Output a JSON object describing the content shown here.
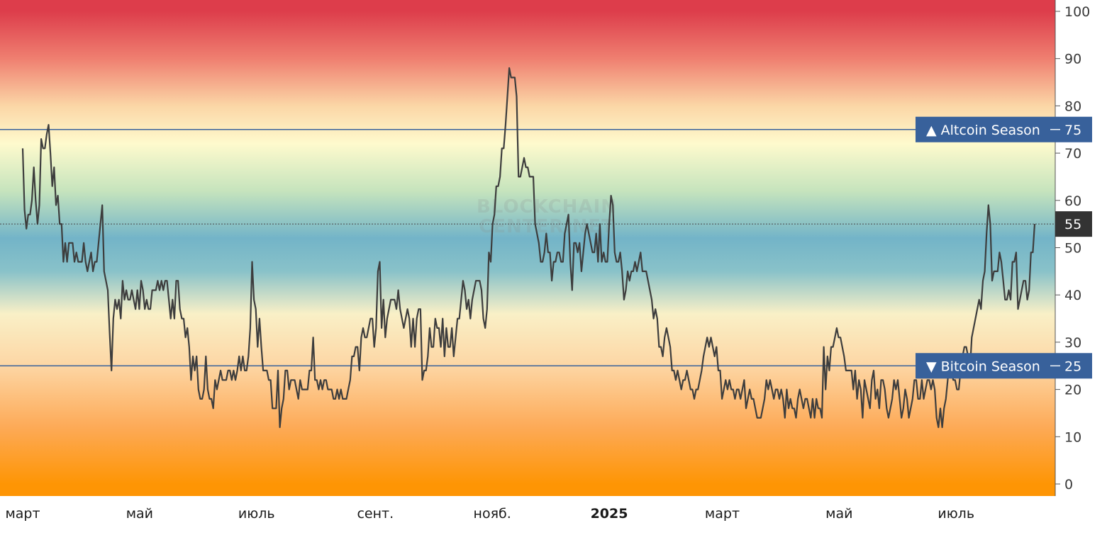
{
  "chart_data": {
    "type": "line",
    "title": "",
    "xlabel": "",
    "ylabel": "",
    "ylim": [
      0,
      100
    ],
    "y_ticks": [
      0,
      10,
      20,
      30,
      40,
      50,
      60,
      70,
      80,
      90,
      100
    ],
    "x_tick_labels": [
      "март",
      "май",
      "июль",
      "сент.",
      "нояб.",
      "2025",
      "март",
      "май",
      "июль"
    ],
    "x_domain_days": [
      0,
      528
    ],
    "x_tick_days": [
      0,
      61,
      122,
      184,
      245,
      306,
      365,
      426,
      487
    ],
    "bold_tick": "2025",
    "current_value": 55,
    "current_value_label": "55",
    "watermark": "BLOCKCHAIN CENTER.NET",
    "reference_lines": [
      {
        "value": 75,
        "label": "▲ Altcoin Season",
        "value_label": "75"
      },
      {
        "value": 25,
        "label": "▼ Bitcoin Season",
        "value_label": "25"
      }
    ],
    "grid": false,
    "legend": "none",
    "background_gradient": [
      {
        "value": 100,
        "color": "#dd3d4b"
      },
      {
        "value": 90,
        "color": "#ef7f70"
      },
      {
        "value": 80,
        "color": "#fbd6a6"
      },
      {
        "value": 72,
        "color": "#fefacd"
      },
      {
        "value": 62,
        "color": "#c6e4bd"
      },
      {
        "value": 52,
        "color": "#73b4c8"
      },
      {
        "value": 45,
        "color": "#89c2c9"
      },
      {
        "value": 36,
        "color": "#f9f0c7"
      },
      {
        "value": 25,
        "color": "#fdd6a4"
      },
      {
        "value": 12,
        "color": "#fdaa57"
      },
      {
        "value": 0,
        "color": "#fe9504"
      }
    ],
    "colors": {
      "line": "#3d3d3d",
      "reference": "#38619b",
      "label_bg": "#38619b",
      "current_bg": "#333333"
    },
    "series": [
      {
        "values": [
          71,
          58,
          54,
          57,
          57,
          60,
          67,
          60,
          55,
          59,
          73,
          71,
          71,
          74,
          76,
          70,
          63,
          67,
          59,
          61,
          55,
          55,
          47,
          51,
          47,
          51,
          51,
          51,
          47,
          49,
          47,
          47,
          47,
          51,
          47,
          45,
          47,
          49,
          45,
          47,
          47,
          51,
          55,
          59,
          45,
          43,
          41,
          32,
          24,
          35,
          39,
          37,
          39,
          35,
          43,
          39,
          41,
          39,
          39,
          41,
          39,
          37,
          41,
          37,
          43,
          41,
          37,
          39,
          37,
          37,
          41,
          41,
          41,
          43,
          41,
          43,
          41,
          43,
          43,
          39,
          35,
          39,
          35,
          43,
          43,
          37,
          35,
          35,
          31,
          33,
          29,
          22,
          27,
          24,
          27,
          20,
          18,
          18,
          20,
          27,
          20,
          18,
          18,
          16,
          22,
          20,
          22,
          24,
          22,
          22,
          22,
          24,
          24,
          22,
          24,
          22,
          24,
          27,
          24,
          27,
          24,
          24,
          27,
          33,
          47,
          39,
          37,
          29,
          35,
          29,
          24,
          24,
          24,
          22,
          22,
          16,
          16,
          16,
          24,
          12,
          16,
          18,
          24,
          24,
          20,
          22,
          22,
          22,
          20,
          18,
          22,
          20,
          20,
          20,
          20,
          24,
          24,
          31,
          22,
          22,
          20,
          22,
          20,
          22,
          22,
          20,
          20,
          20,
          18,
          18,
          20,
          18,
          20,
          18,
          18,
          18,
          20,
          22,
          27,
          27,
          29,
          29,
          24,
          31,
          33,
          31,
          31,
          33,
          35,
          35,
          29,
          33,
          45,
          47,
          33,
          39,
          31,
          35,
          37,
          39,
          39,
          39,
          37,
          41,
          37,
          35,
          33,
          35,
          37,
          35,
          29,
          35,
          29,
          35,
          37,
          37,
          22,
          24,
          24,
          27,
          33,
          29,
          29,
          35,
          33,
          33,
          29,
          35,
          27,
          33,
          29,
          29,
          33,
          27,
          31,
          35,
          35,
          39,
          43,
          41,
          37,
          39,
          35,
          39,
          41,
          43,
          43,
          43,
          41,
          35,
          33,
          37,
          49,
          47,
          55,
          57,
          63,
          63,
          65,
          71,
          71,
          76,
          82,
          88,
          86,
          86,
          86,
          82,
          65,
          65,
          67,
          69,
          67,
          67,
          65,
          65,
          65,
          55,
          53,
          51,
          47,
          47,
          49,
          53,
          49,
          49,
          43,
          47,
          47,
          49,
          49,
          47,
          47,
          53,
          55,
          57,
          47,
          41,
          51,
          51,
          49,
          51,
          45,
          49,
          53,
          55,
          53,
          51,
          49,
          49,
          53,
          47,
          55,
          47,
          49,
          47,
          47,
          55,
          61,
          59,
          49,
          47,
          47,
          49,
          45,
          39,
          41,
          45,
          43,
          45,
          45,
          47,
          45,
          47,
          49,
          45,
          45,
          45,
          43,
          41,
          39,
          35,
          37,
          35,
          29,
          29,
          27,
          31,
          33,
          31,
          29,
          24,
          24,
          22,
          24,
          22,
          20,
          22,
          22,
          24,
          22,
          20,
          20,
          18,
          20,
          20,
          22,
          24,
          27,
          29,
          31,
          29,
          31,
          29,
          27,
          29,
          24,
          24,
          18,
          20,
          22,
          20,
          22,
          20,
          20,
          18,
          20,
          20,
          18,
          20,
          22,
          16,
          18,
          20,
          18,
          18,
          16,
          14,
          14,
          14,
          16,
          18,
          22,
          20,
          22,
          20,
          18,
          20,
          20,
          18,
          20,
          18,
          14,
          20,
          16,
          18,
          16,
          16,
          14,
          18,
          20,
          18,
          16,
          18,
          18,
          16,
          14,
          18,
          14,
          18,
          16,
          16,
          14,
          29,
          20,
          27,
          24,
          29,
          29,
          31,
          33,
          31,
          31,
          29,
          27,
          24,
          24,
          24,
          24,
          20,
          24,
          18,
          22,
          20,
          14,
          22,
          20,
          18,
          16,
          22,
          24,
          18,
          20,
          16,
          22,
          22,
          20,
          16,
          14,
          16,
          18,
          22,
          20,
          22,
          18,
          14,
          16,
          20,
          18,
          14,
          16,
          18,
          22,
          22,
          18,
          18,
          22,
          18,
          20,
          22,
          22,
          20,
          22,
          20,
          14,
          12,
          16,
          12,
          16,
          18,
          22,
          27,
          24,
          22,
          22,
          20,
          20,
          24,
          27,
          29,
          29,
          27,
          24,
          31,
          33,
          35,
          37,
          39,
          37,
          43,
          45,
          53,
          59,
          55,
          43,
          45,
          45,
          45,
          49,
          47,
          43,
          39,
          39,
          41,
          39,
          47,
          47,
          49,
          37,
          39,
          41,
          43,
          43,
          39,
          41,
          49,
          49,
          55
        ]
      }
    ]
  }
}
